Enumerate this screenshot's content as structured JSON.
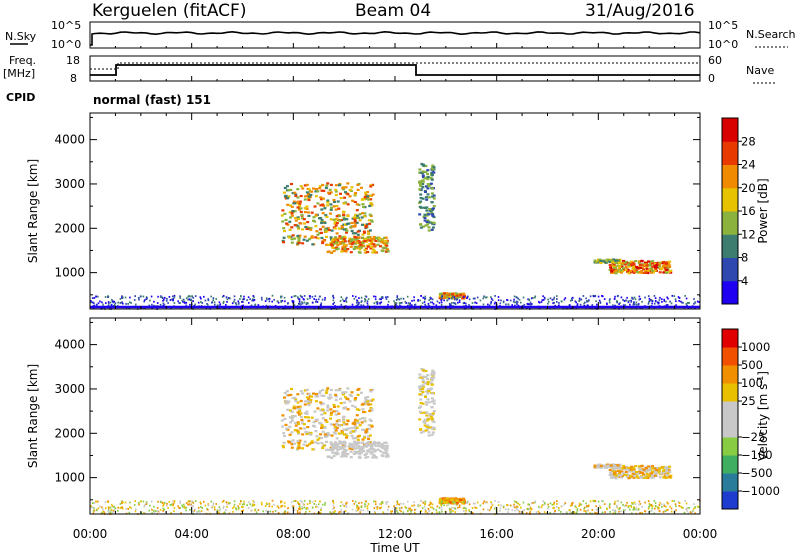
{
  "header": {
    "station": "Kerguelen (fitACF)",
    "beam": "Beam 04",
    "date": "31/Aug/2016"
  },
  "noise_panel": {
    "left_label": "N.Sky",
    "right_label": "N.Search",
    "left_ticks": [
      "10^5",
      "10^0"
    ],
    "right_ticks": [
      "10^5",
      "10^0"
    ]
  },
  "freq_panel": {
    "left_label_1": "Freq.",
    "left_label_2": "[MHz]",
    "right_label": "Nave",
    "left_ticks": [
      "18",
      "8"
    ],
    "right_ticks": [
      "60",
      "0"
    ]
  },
  "cpid": {
    "label": "CPID",
    "value": "normal (fast) 151"
  },
  "chart_data": [
    {
      "type": "heatmap",
      "name": "Power",
      "ylabel": "Slant Range [km]",
      "xlabel": "Time UT",
      "ylim": [
        180,
        4600
      ],
      "x_ticks": [
        "00:00",
        "04:00",
        "08:00",
        "12:00",
        "16:00",
        "20:00",
        "00:00"
      ],
      "y_ticks": [
        "1000",
        "2000",
        "3000",
        "4000"
      ],
      "colorbar_label": "Power [dB]",
      "colorbar_ticks": [
        "4",
        "8",
        "12",
        "16",
        "20",
        "24",
        "28"
      ],
      "colorbar_colors": [
        "#1f00f0",
        "#2f48b0",
        "#3d7d70",
        "#8ab23c",
        "#e7c200",
        "#f08a00",
        "#e83a00",
        "#d90000"
      ]
    },
    {
      "type": "heatmap",
      "name": "Velocity",
      "ylabel": "Slant Range [km]",
      "xlabel": "Time UT",
      "ylim": [
        180,
        4600
      ],
      "x_ticks": [
        "00:00",
        "04:00",
        "08:00",
        "12:00",
        "16:00",
        "20:00",
        "00:00"
      ],
      "y_ticks": [
        "1000",
        "2000",
        "3000",
        "4000"
      ],
      "colorbar_label": "Velocity [m s^-1]",
      "colorbar_ticks": [
        "1000",
        "500",
        "100",
        "25",
        "-25",
        "-100",
        "-500",
        "-1000"
      ],
      "colorbar_colors": [
        "#1f3cd0",
        "#2a7d9a",
        "#3fae60",
        "#88cc44",
        "#c8c8c8",
        "#c8c8c8",
        "#e8c000",
        "#f09000",
        "#f05000",
        "#e00000"
      ]
    }
  ],
  "x_axis": {
    "label": "Time UT",
    "ticks": [
      "00:00",
      "04:00",
      "08:00",
      "12:00",
      "16:00",
      "20:00",
      "00:00"
    ]
  }
}
